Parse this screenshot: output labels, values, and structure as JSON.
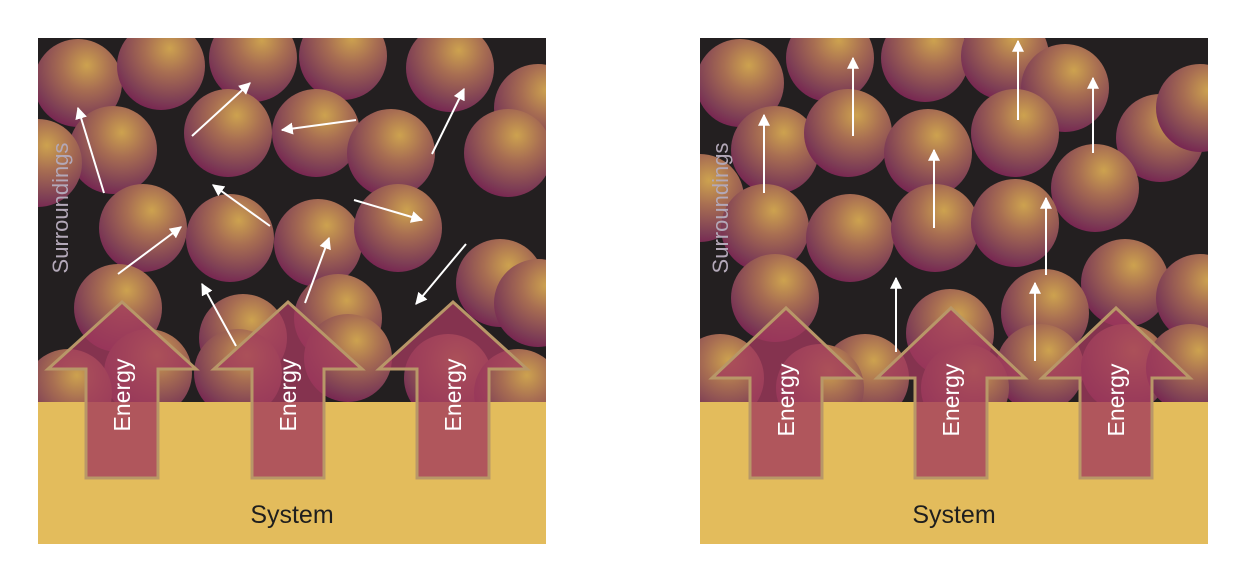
{
  "diagrams": [
    {
      "id": "random-motion",
      "surroundings_label": "Surroundings",
      "system_label": "System",
      "energy_labels": [
        "Energy",
        "Energy",
        "Energy"
      ]
    },
    {
      "id": "directed-motion",
      "surroundings_label": "Surroundings",
      "system_label": "System",
      "energy_labels": [
        "Energy",
        "Energy",
        "Energy"
      ]
    }
  ],
  "colors": {
    "surroundings_bg": "#231f20",
    "system_bg": "#e3bc5c",
    "particle_core": "#c79a4e",
    "particle_edge": "#7a1552",
    "energy_arrow_fill": "#a23a5c",
    "energy_arrow_outline": "#b89768",
    "motion_arrow": "#ffffff"
  }
}
